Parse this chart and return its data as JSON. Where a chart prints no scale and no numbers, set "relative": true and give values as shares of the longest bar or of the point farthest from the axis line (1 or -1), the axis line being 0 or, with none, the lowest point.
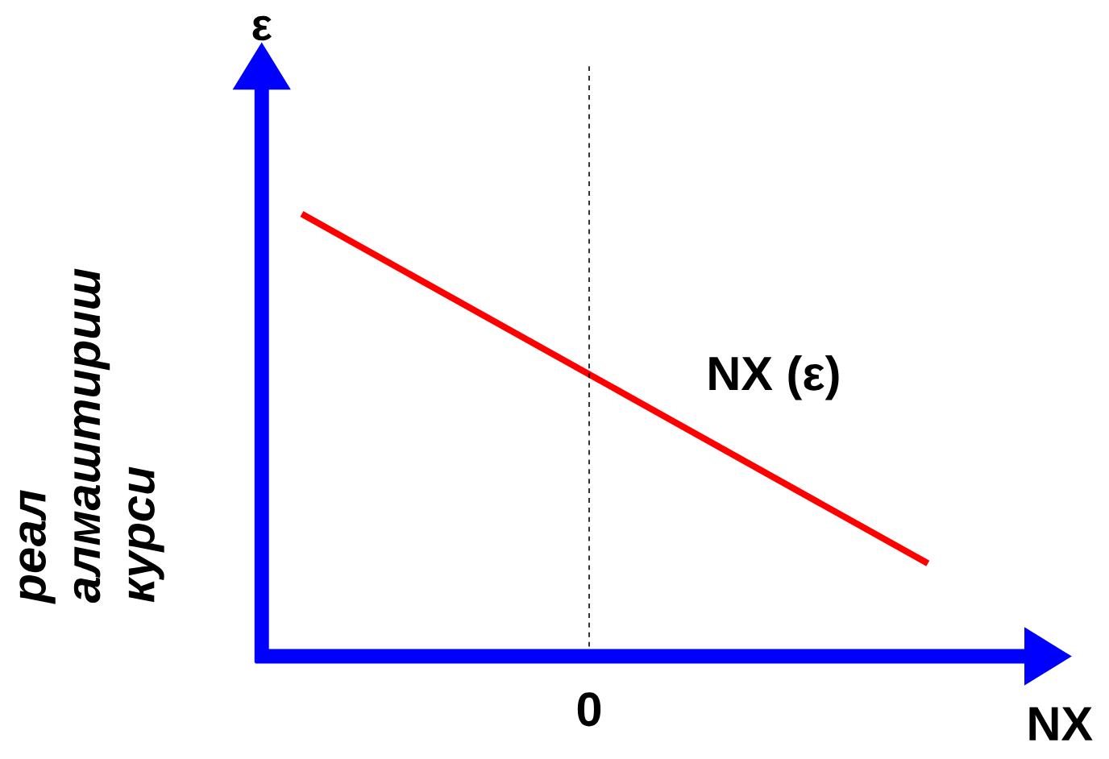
{
  "chart_data": {
    "type": "line",
    "relative": true,
    "xlabel": "NX",
    "ylabel": "реал алмаштириш курси",
    "annotations": [
      "ε",
      "0"
    ],
    "categories": [
      null,
      null
    ],
    "series": [
      {
        "name": "NX (ε)",
        "color": "#ff0000",
        "values": [
          1,
          0.21
        ]
      }
    ],
    "legend": false,
    "marker": "none",
    "line_style": "solid"
  }
}
